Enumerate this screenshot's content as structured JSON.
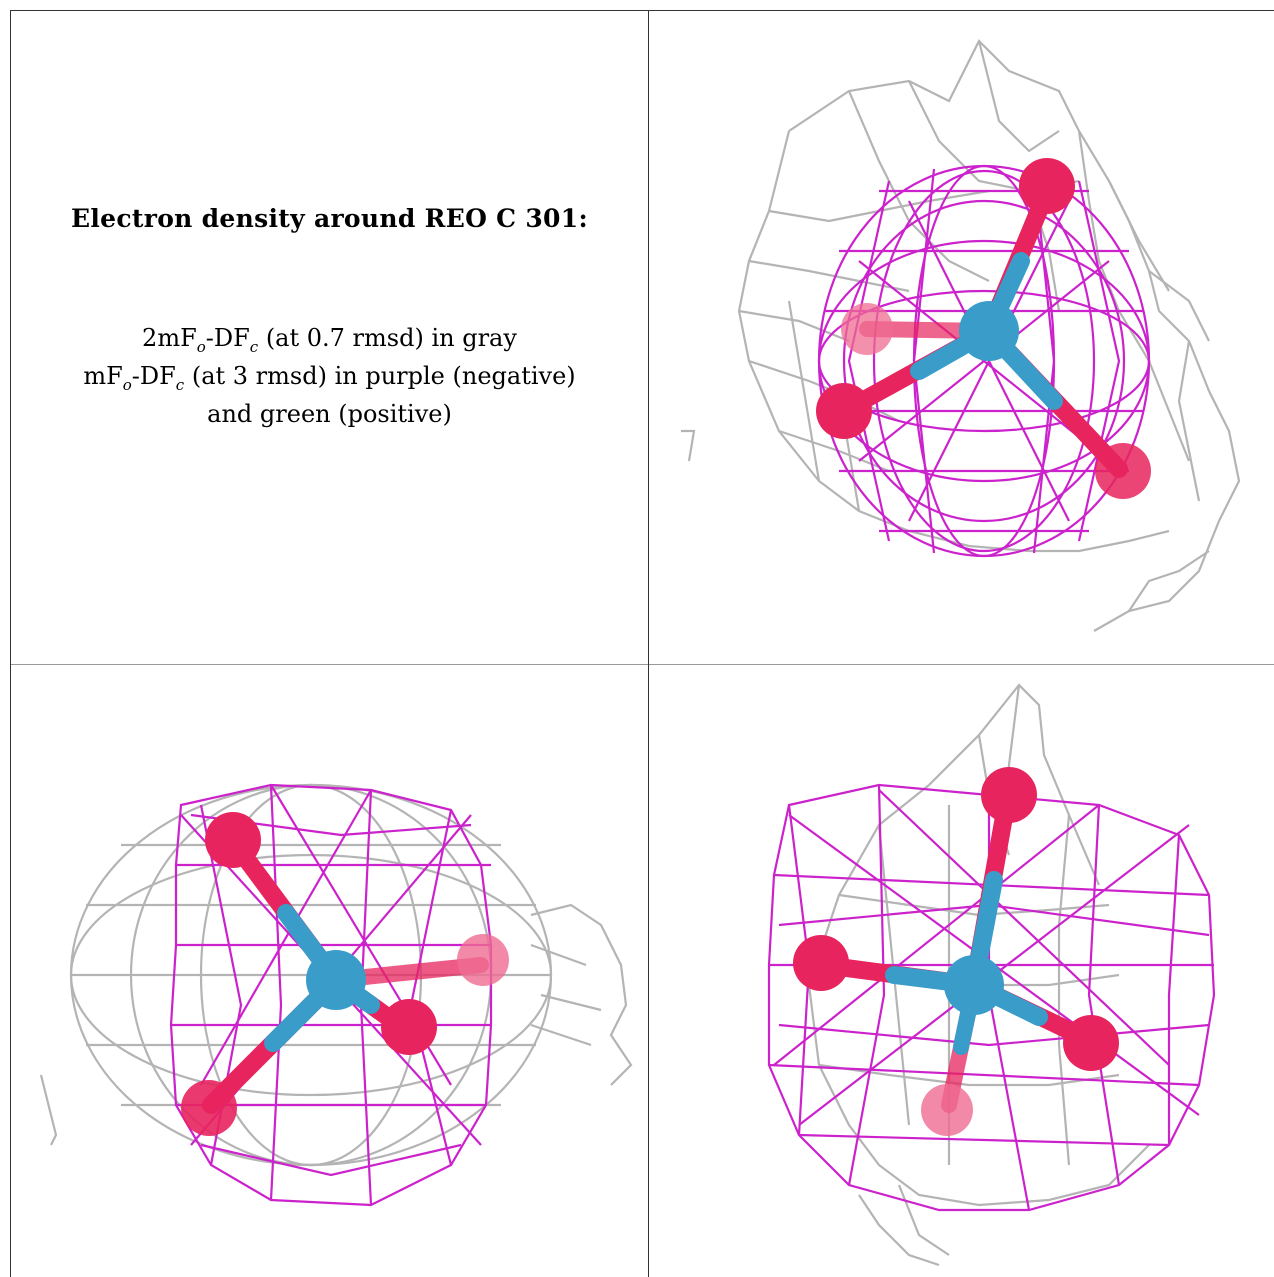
{
  "caption": {
    "title": "Electron density around REO C 301:",
    "line1": {
      "pre": "2mF",
      "sub1": "o",
      "mid": "-DF",
      "sub2": "c",
      "post": " (at 0.7 rmsd) in gray"
    },
    "line2": {
      "pre": "mF",
      "sub1": "o",
      "mid": "-DF",
      "sub2": "c",
      "post": " (at 3 rmsd) in purple (negative)"
    },
    "line3": "and green (positive)"
  },
  "colors": {
    "negative_mesh": "#cc22cc",
    "gray_mesh": "#b4b4b4",
    "oxygen": "#e8245e",
    "rhenium": "#3a9cc8",
    "frame": "#333333"
  },
  "views": [
    {
      "id": "view-1",
      "description_icon": "density-mesh-view"
    },
    {
      "id": "view-2",
      "description_icon": "density-mesh-view"
    },
    {
      "id": "view-3",
      "description_icon": "density-mesh-view"
    }
  ]
}
